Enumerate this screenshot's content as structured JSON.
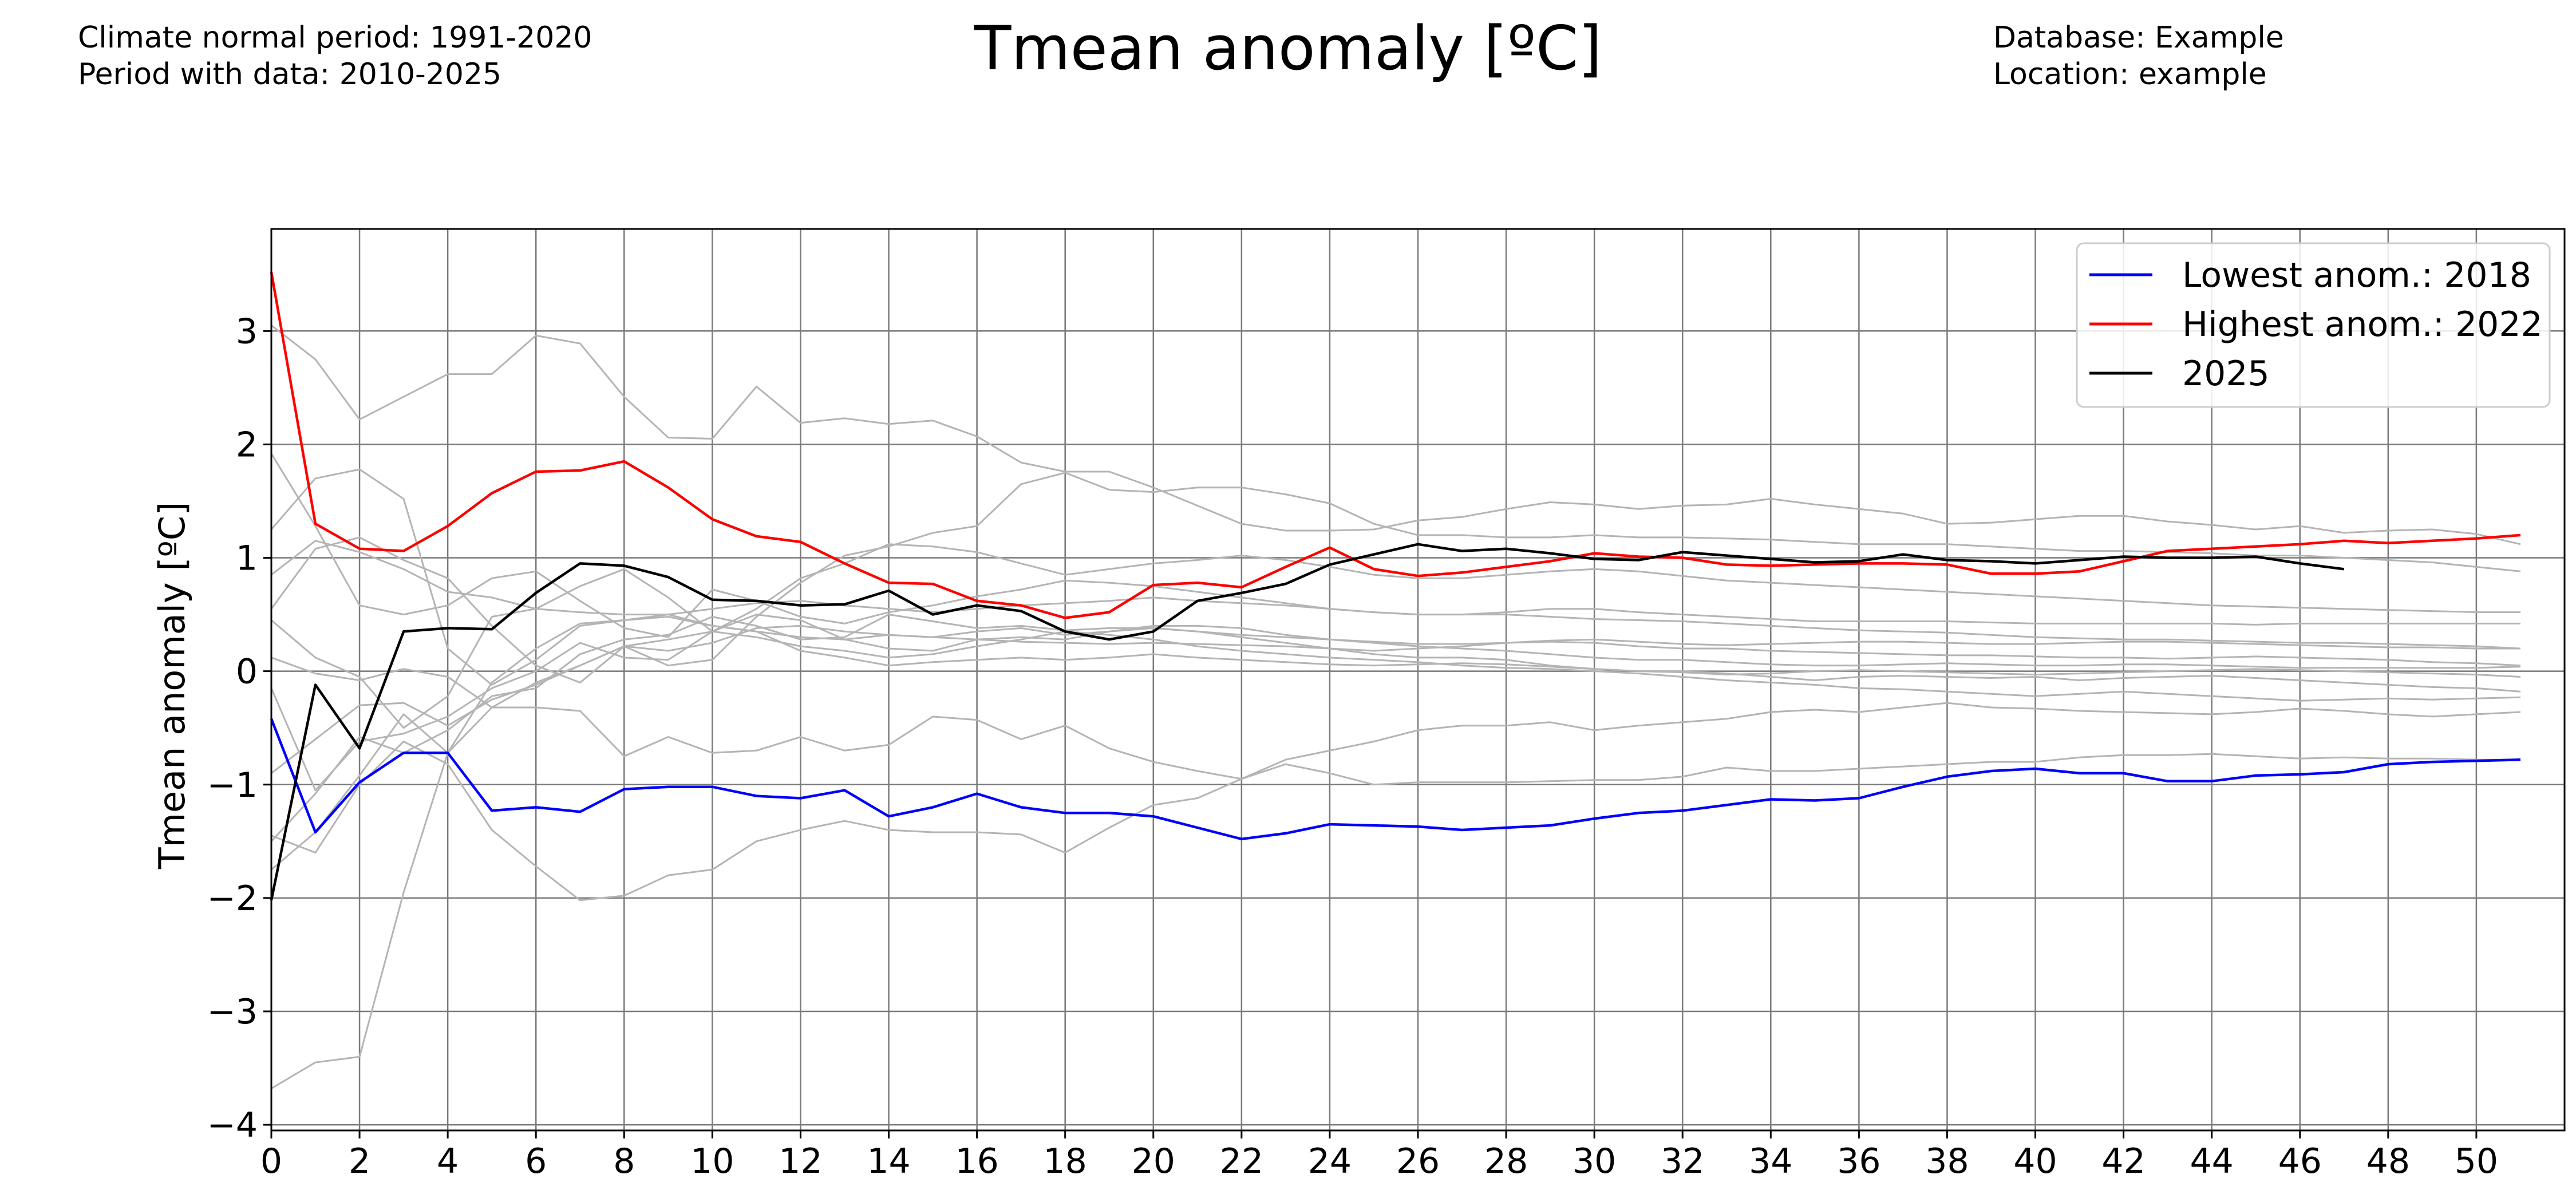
{
  "header": {
    "left_line1": "Climate normal period: 1991-2020",
    "left_line2": "Period with data: 2010-2025",
    "right_line1": "Database: Example",
    "right_line2": "Location: example"
  },
  "chart_data": {
    "type": "line",
    "title": "Tmean anomaly [ºC]",
    "xlabel": "",
    "ylabel": "Tmean anomaly [ºC]",
    "xlim": [
      0,
      52
    ],
    "ylim": [
      -4.05,
      3.9
    ],
    "xticks": [
      0,
      2,
      4,
      6,
      8,
      10,
      12,
      14,
      16,
      18,
      20,
      22,
      24,
      26,
      28,
      30,
      32,
      34,
      36,
      38,
      40,
      42,
      44,
      46,
      48,
      50
    ],
    "yticks": [
      -4,
      -3,
      -2,
      -1,
      0,
      1,
      2,
      3
    ],
    "ytick_labels": [
      "−4",
      "−3",
      "−2",
      "−1",
      "0",
      "1",
      "2",
      "3"
    ],
    "grid": true,
    "legend_position": "top-right",
    "series": [
      {
        "color": "#b4b4b4",
        "values": [
          1.25,
          1.7,
          1.78,
          1.52,
          0.2,
          -0.12,
          0.1,
          0.4,
          0.45,
          0.48,
          0.4,
          0.35,
          0.3,
          0.28,
          0.32,
          0.3,
          0.28,
          0.26,
          0.25,
          0.24,
          0.25,
          0.24,
          0.23,
          0.22,
          0.2,
          0.18,
          0.2,
          0.22,
          0.25,
          0.26,
          0.25,
          0.22,
          0.2,
          0.2,
          0.18,
          0.17,
          0.16,
          0.15,
          0.14,
          0.14,
          0.13,
          0.12,
          0.12,
          0.11,
          0.12,
          0.13,
          0.12,
          0.11,
          0.1,
          0.08,
          0.07,
          0.05
        ]
      },
      {
        "color": "#b4b4b4",
        "values": [
          3.05,
          2.75,
          2.22,
          2.42,
          2.62,
          2.62,
          2.96,
          2.89,
          2.42,
          2.06,
          2.05,
          2.51,
          2.19,
          2.23,
          2.18,
          2.21,
          2.07,
          1.84,
          1.76,
          1.76,
          1.62,
          1.46,
          1.3,
          1.24,
          1.24,
          1.25,
          1.33,
          1.36,
          1.43,
          1.49,
          1.47,
          1.43,
          1.46,
          1.47,
          1.52,
          1.47,
          1.43,
          1.39,
          1.3,
          1.31,
          1.34,
          1.37,
          1.37,
          1.32,
          1.29,
          1.25,
          1.28,
          1.22,
          1.24,
          1.25,
          1.21,
          1.12
        ]
      },
      {
        "color": "#b4b4b4",
        "values": [
          0.55,
          1.08,
          1.18,
          0.98,
          0.82,
          0.4,
          0.05,
          -0.1,
          0.22,
          0.05,
          0.1,
          0.48,
          0.78,
          1.02,
          1.1,
          1.22,
          1.28,
          1.65,
          1.75,
          1.6,
          1.58,
          1.62,
          1.62,
          1.56,
          1.48,
          1.3,
          1.2,
          1.2,
          1.18,
          1.18,
          1.2,
          1.18,
          1.18,
          1.17,
          1.16,
          1.14,
          1.12,
          1.12,
          1.12,
          1.1,
          1.08,
          1.06,
          1.06,
          1.05,
          1.04,
          1.02,
          1.02,
          1.0,
          0.98,
          0.96,
          0.92,
          0.88
        ]
      },
      {
        "color": "#b4b4b4",
        "values": [
          0.45,
          0.12,
          -0.05,
          -0.5,
          -0.22,
          0.48,
          0.55,
          0.75,
          0.9,
          0.65,
          0.35,
          0.55,
          0.82,
          0.95,
          1.12,
          1.1,
          1.05,
          0.95,
          0.85,
          0.9,
          0.95,
          0.98,
          1.02,
          0.98,
          0.92,
          0.85,
          0.82,
          0.82,
          0.85,
          0.88,
          0.9,
          0.88,
          0.84,
          0.8,
          0.78,
          0.76,
          0.74,
          0.72,
          0.7,
          0.68,
          0.66,
          0.64,
          0.62,
          0.6,
          0.58,
          0.57,
          0.56,
          0.55,
          0.54,
          0.53,
          0.52,
          0.52
        ]
      },
      {
        "color": "#b4b4b4",
        "values": [
          1.92,
          1.28,
          0.58,
          0.5,
          0.58,
          0.82,
          0.88,
          0.62,
          0.38,
          0.3,
          0.72,
          0.62,
          0.48,
          0.42,
          0.52,
          0.58,
          0.66,
          0.72,
          0.8,
          0.78,
          0.75,
          0.7,
          0.65,
          0.6,
          0.55,
          0.52,
          0.5,
          0.5,
          0.52,
          0.55,
          0.55,
          0.52,
          0.5,
          0.48,
          0.46,
          0.44,
          0.44,
          0.44,
          0.44,
          0.43,
          0.42,
          0.42,
          0.42,
          0.42,
          0.42,
          0.41,
          0.42,
          0.42,
          0.42,
          0.42,
          0.42,
          0.42
        ]
      },
      {
        "color": "#b4b4b4",
        "values": [
          -1.5,
          -1.08,
          -0.58,
          -0.72,
          -0.52,
          -0.22,
          -0.15,
          0.15,
          0.28,
          0.32,
          0.48,
          0.4,
          0.28,
          0.3,
          0.5,
          0.44,
          0.38,
          0.4,
          0.36,
          0.38,
          0.38,
          0.35,
          0.32,
          0.3,
          0.28,
          0.26,
          0.24,
          0.24,
          0.25,
          0.27,
          0.28,
          0.26,
          0.24,
          0.23,
          0.24,
          0.25,
          0.26,
          0.26,
          0.25,
          0.24,
          0.24,
          0.25,
          0.26,
          0.26,
          0.25,
          0.24,
          0.23,
          0.22,
          0.21,
          0.21,
          0.2,
          0.2
        ]
      },
      {
        "color": "#b4b4b4",
        "values": [
          -0.15,
          -1.05,
          -0.62,
          -0.55,
          -0.4,
          -0.15,
          0.0,
          0.25,
          0.12,
          0.1,
          0.35,
          0.5,
          0.45,
          0.28,
          0.2,
          0.18,
          0.28,
          0.3,
          0.28,
          0.35,
          0.4,
          0.4,
          0.38,
          0.32,
          0.28,
          0.25,
          0.22,
          0.2,
          0.18,
          0.15,
          0.12,
          0.1,
          0.1,
          0.08,
          0.06,
          0.05,
          0.05,
          0.06,
          0.07,
          0.06,
          0.05,
          0.05,
          0.06,
          0.06,
          0.05,
          0.04,
          0.03,
          0.03,
          0.03,
          0.03,
          0.03,
          0.04
        ]
      },
      {
        "color": "#b4b4b4",
        "values": [
          -1.75,
          -1.42,
          -0.92,
          -0.38,
          -0.72,
          -0.32,
          -0.32,
          -0.35,
          -0.75,
          -0.58,
          -0.72,
          -0.7,
          -0.58,
          -0.7,
          -0.65,
          -0.4,
          -0.43,
          -0.6,
          -0.48,
          -0.68,
          -0.8,
          -0.88,
          -0.95,
          -0.78,
          -0.7,
          -0.62,
          -0.52,
          -0.48,
          -0.48,
          -0.45,
          -0.52,
          -0.48,
          -0.45,
          -0.42,
          -0.36,
          -0.34,
          -0.36,
          -0.32,
          -0.28,
          -0.32,
          -0.33,
          -0.35,
          -0.36,
          -0.37,
          -0.38,
          -0.36,
          -0.33,
          -0.35,
          -0.38,
          -0.4,
          -0.38,
          -0.36
        ]
      },
      {
        "color": "#b4b4b4",
        "values": [
          -1.45,
          -1.6,
          -1.0,
          -0.62,
          -0.82,
          -1.4,
          -1.72,
          -2.02,
          -1.98,
          -1.8,
          -1.75,
          -1.5,
          -1.4,
          -1.32,
          -1.4,
          -1.42,
          -1.42,
          -1.44,
          -1.6,
          -1.38,
          -1.18,
          -1.12,
          -0.95,
          -0.82,
          -0.9,
          -1.0,
          -0.98,
          -0.98,
          -0.98,
          -0.97,
          -0.96,
          -0.96,
          -0.93,
          -0.85,
          -0.88,
          -0.88,
          -0.86,
          -0.84,
          -0.82,
          -0.8,
          -0.8,
          -0.76,
          -0.74,
          -0.74,
          -0.73,
          -0.75,
          -0.77,
          -0.76,
          -0.77,
          -0.77,
          -0.78,
          -0.78
        ]
      },
      {
        "color": "#b4b4b4",
        "values": [
          -3.68,
          -3.45,
          -3.4,
          -1.95,
          -0.72,
          -0.1,
          0.2,
          0.42,
          0.45,
          0.5,
          0.4,
          0.35,
          0.18,
          0.12,
          0.05,
          0.08,
          0.1,
          0.12,
          0.1,
          0.12,
          0.15,
          0.12,
          0.1,
          0.08,
          0.06,
          0.05,
          0.06,
          0.07,
          0.06,
          0.04,
          0.02,
          0.0,
          -0.01,
          -0.03,
          -0.02,
          0.0,
          0.01,
          0.0,
          -0.01,
          -0.02,
          -0.03,
          -0.02,
          -0.01,
          0.0,
          0.01,
          0.02,
          0.01,
          0.0,
          -0.01,
          -0.02,
          -0.03,
          -0.05
        ]
      },
      {
        "color": "#b4b4b4",
        "values": [
          0.12,
          -0.02,
          -0.08,
          0.02,
          -0.05,
          -0.32,
          -0.1,
          0.05,
          0.22,
          0.18,
          0.25,
          0.38,
          0.4,
          0.35,
          0.32,
          0.3,
          0.35,
          0.38,
          0.32,
          0.35,
          0.38,
          0.35,
          0.3,
          0.25,
          0.2,
          0.15,
          0.12,
          0.12,
          0.1,
          0.05,
          0.02,
          0.0,
          0.0,
          -0.02,
          -0.05,
          -0.08,
          -0.05,
          -0.04,
          -0.05,
          -0.06,
          -0.05,
          -0.08,
          -0.06,
          -0.05,
          -0.04,
          -0.06,
          -0.08,
          -0.1,
          -0.12,
          -0.14,
          -0.15,
          -0.18
        ]
      },
      {
        "color": "#b4b4b4",
        "values": [
          -0.9,
          -0.6,
          -0.3,
          -0.28,
          -0.48,
          -0.25,
          -0.12,
          0.05,
          0.22,
          0.28,
          0.35,
          0.3,
          0.22,
          0.18,
          0.12,
          0.15,
          0.22,
          0.28,
          0.35,
          0.32,
          0.28,
          0.22,
          0.18,
          0.15,
          0.12,
          0.1,
          0.08,
          0.05,
          0.03,
          0.02,
          0.0,
          -0.02,
          -0.05,
          -0.08,
          -0.1,
          -0.12,
          -0.15,
          -0.16,
          -0.18,
          -0.2,
          -0.22,
          -0.2,
          -0.18,
          -0.2,
          -0.22,
          -0.24,
          -0.26,
          -0.25,
          -0.24,
          -0.25,
          -0.24,
          -0.23
        ]
      },
      {
        "color": "#b4b4b4",
        "values": [
          0.85,
          1.15,
          1.05,
          0.9,
          0.7,
          0.65,
          0.55,
          0.52,
          0.5,
          0.5,
          0.55,
          0.6,
          0.62,
          0.58,
          0.55,
          0.52,
          0.55,
          0.58,
          0.6,
          0.62,
          0.65,
          0.62,
          0.6,
          0.58,
          0.55,
          0.52,
          0.5,
          0.5,
          0.5,
          0.48,
          0.46,
          0.45,
          0.44,
          0.42,
          0.4,
          0.38,
          0.36,
          0.35,
          0.34,
          0.32,
          0.3,
          0.29,
          0.28,
          0.28,
          0.27,
          0.26,
          0.25,
          0.25,
          0.24,
          0.23,
          0.22,
          0.2
        ]
      },
      {
        "color": "#0000ff",
        "name": "Lowest anom.: 2018",
        "values": [
          -0.42,
          -1.42,
          -0.98,
          -0.72,
          -0.72,
          -1.23,
          -1.2,
          -1.24,
          -1.04,
          -1.02,
          -1.02,
          -1.1,
          -1.12,
          -1.05,
          -1.28,
          -1.2,
          -1.08,
          -1.2,
          -1.25,
          -1.25,
          -1.28,
          -1.38,
          -1.48,
          -1.43,
          -1.35,
          -1.36,
          -1.37,
          -1.4,
          -1.38,
          -1.36,
          -1.3,
          -1.25,
          -1.23,
          -1.18,
          -1.13,
          -1.14,
          -1.12,
          -1.02,
          -0.93,
          -0.88,
          -0.86,
          -0.9,
          -0.9,
          -0.97,
          -0.97,
          -0.92,
          -0.91,
          -0.89,
          -0.82,
          -0.8,
          -0.79,
          -0.78
        ]
      },
      {
        "color": "#ff0000",
        "name": "Highest anom.: 2022",
        "values": [
          3.52,
          1.3,
          1.08,
          1.06,
          1.28,
          1.57,
          1.76,
          1.77,
          1.85,
          1.62,
          1.34,
          1.19,
          1.14,
          0.95,
          0.78,
          0.77,
          0.62,
          0.58,
          0.47,
          0.52,
          0.76,
          0.78,
          0.74,
          0.92,
          1.09,
          0.9,
          0.84,
          0.87,
          0.92,
          0.97,
          1.04,
          1.01,
          1.0,
          0.94,
          0.93,
          0.94,
          0.95,
          0.95,
          0.94,
          0.86,
          0.86,
          0.88,
          0.97,
          1.06,
          1.08,
          1.1,
          1.12,
          1.15,
          1.13,
          1.15,
          1.17,
          1.2
        ]
      },
      {
        "color": "#000000",
        "name": "2025",
        "values": [
          -2.02,
          -0.12,
          -0.68,
          0.35,
          0.38,
          0.37,
          0.69,
          0.95,
          0.93,
          0.83,
          0.63,
          0.62,
          0.58,
          0.59,
          0.71,
          0.5,
          0.58,
          0.53,
          0.35,
          0.28,
          0.35,
          0.62,
          0.69,
          0.77,
          0.94,
          1.03,
          1.12,
          1.06,
          1.08,
          1.04,
          0.99,
          0.98,
          1.05,
          1.02,
          0.99,
          0.96,
          0.97,
          1.03,
          0.98,
          0.97,
          0.95,
          0.98,
          1.01,
          1.0,
          1.0,
          1.01,
          0.95,
          0.9
        ]
      }
    ]
  }
}
